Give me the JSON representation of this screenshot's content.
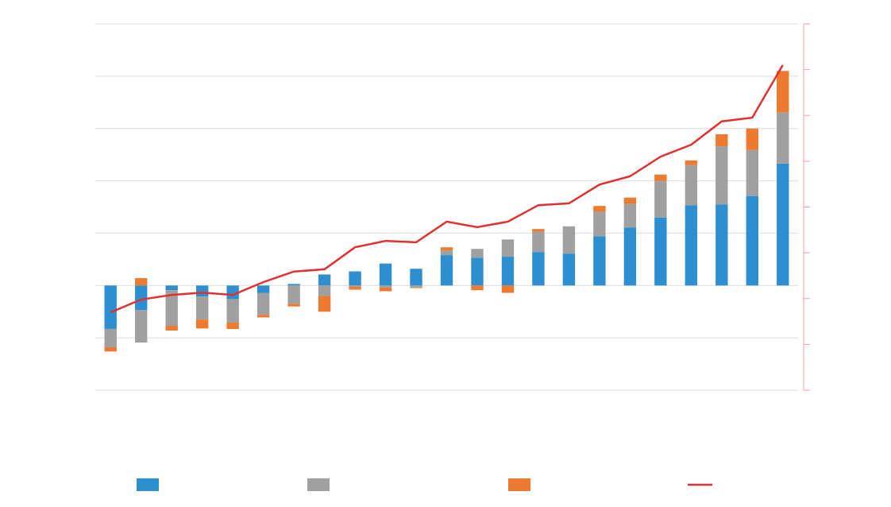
{
  "chart_data": {
    "type": "bar",
    "categories": [
      null,
      null,
      null,
      null,
      null,
      null,
      null,
      null,
      null,
      null,
      null,
      null,
      null,
      null,
      null,
      null,
      null,
      null,
      null,
      null,
      null,
      null,
      null
    ],
    "stacked": true,
    "grid": true,
    "ylim": [
      -2,
      5
    ],
    "yticks": [
      -2,
      -1,
      0,
      1,
      2,
      3,
      4,
      5
    ],
    "y2lim": [
      0,
      8
    ],
    "y2ticks": [
      0,
      1,
      2,
      3,
      4,
      5,
      6,
      7,
      8
    ],
    "series": [
      {
        "color": "#2e8fd0",
        "values": [
          -0.83,
          -0.47,
          -0.09,
          -0.21,
          -0.26,
          -0.14,
          0.03,
          0.21,
          0.27,
          0.42,
          0.32,
          0.58,
          0.53,
          0.55,
          0.64,
          0.61,
          0.94,
          1.11,
          1.3,
          1.53,
          1.55,
          1.71,
          2.33
        ]
      },
      {
        "color": "#a0a0a0",
        "values": [
          -0.35,
          -0.62,
          -0.68,
          -0.44,
          -0.45,
          -0.42,
          -0.35,
          -0.2,
          -0.02,
          -0.04,
          -0.04,
          0.09,
          0.17,
          0.33,
          0.39,
          0.52,
          0.47,
          0.45,
          0.7,
          0.77,
          1.11,
          0.88,
          0.98
        ]
      },
      {
        "color": "#ec7a30",
        "values": [
          -0.08,
          0.14,
          -0.09,
          -0.17,
          -0.12,
          -0.05,
          -0.05,
          -0.3,
          -0.06,
          -0.07,
          -0.01,
          0.06,
          -0.09,
          -0.14,
          0.05,
          0,
          0.11,
          0.12,
          0.12,
          0.09,
          0.23,
          0.41,
          0.79
        ]
      },
      {
        "type": "line",
        "axis": "y2",
        "color": "#e03030",
        "values": [
          1.7,
          1.98,
          2.08,
          2.13,
          2.08,
          2.36,
          2.59,
          2.64,
          3.12,
          3.26,
          3.23,
          3.68,
          3.56,
          3.68,
          4.04,
          4.08,
          4.49,
          4.67,
          5.1,
          5.36,
          5.87,
          5.95,
          7.1
        ]
      }
    ]
  }
}
